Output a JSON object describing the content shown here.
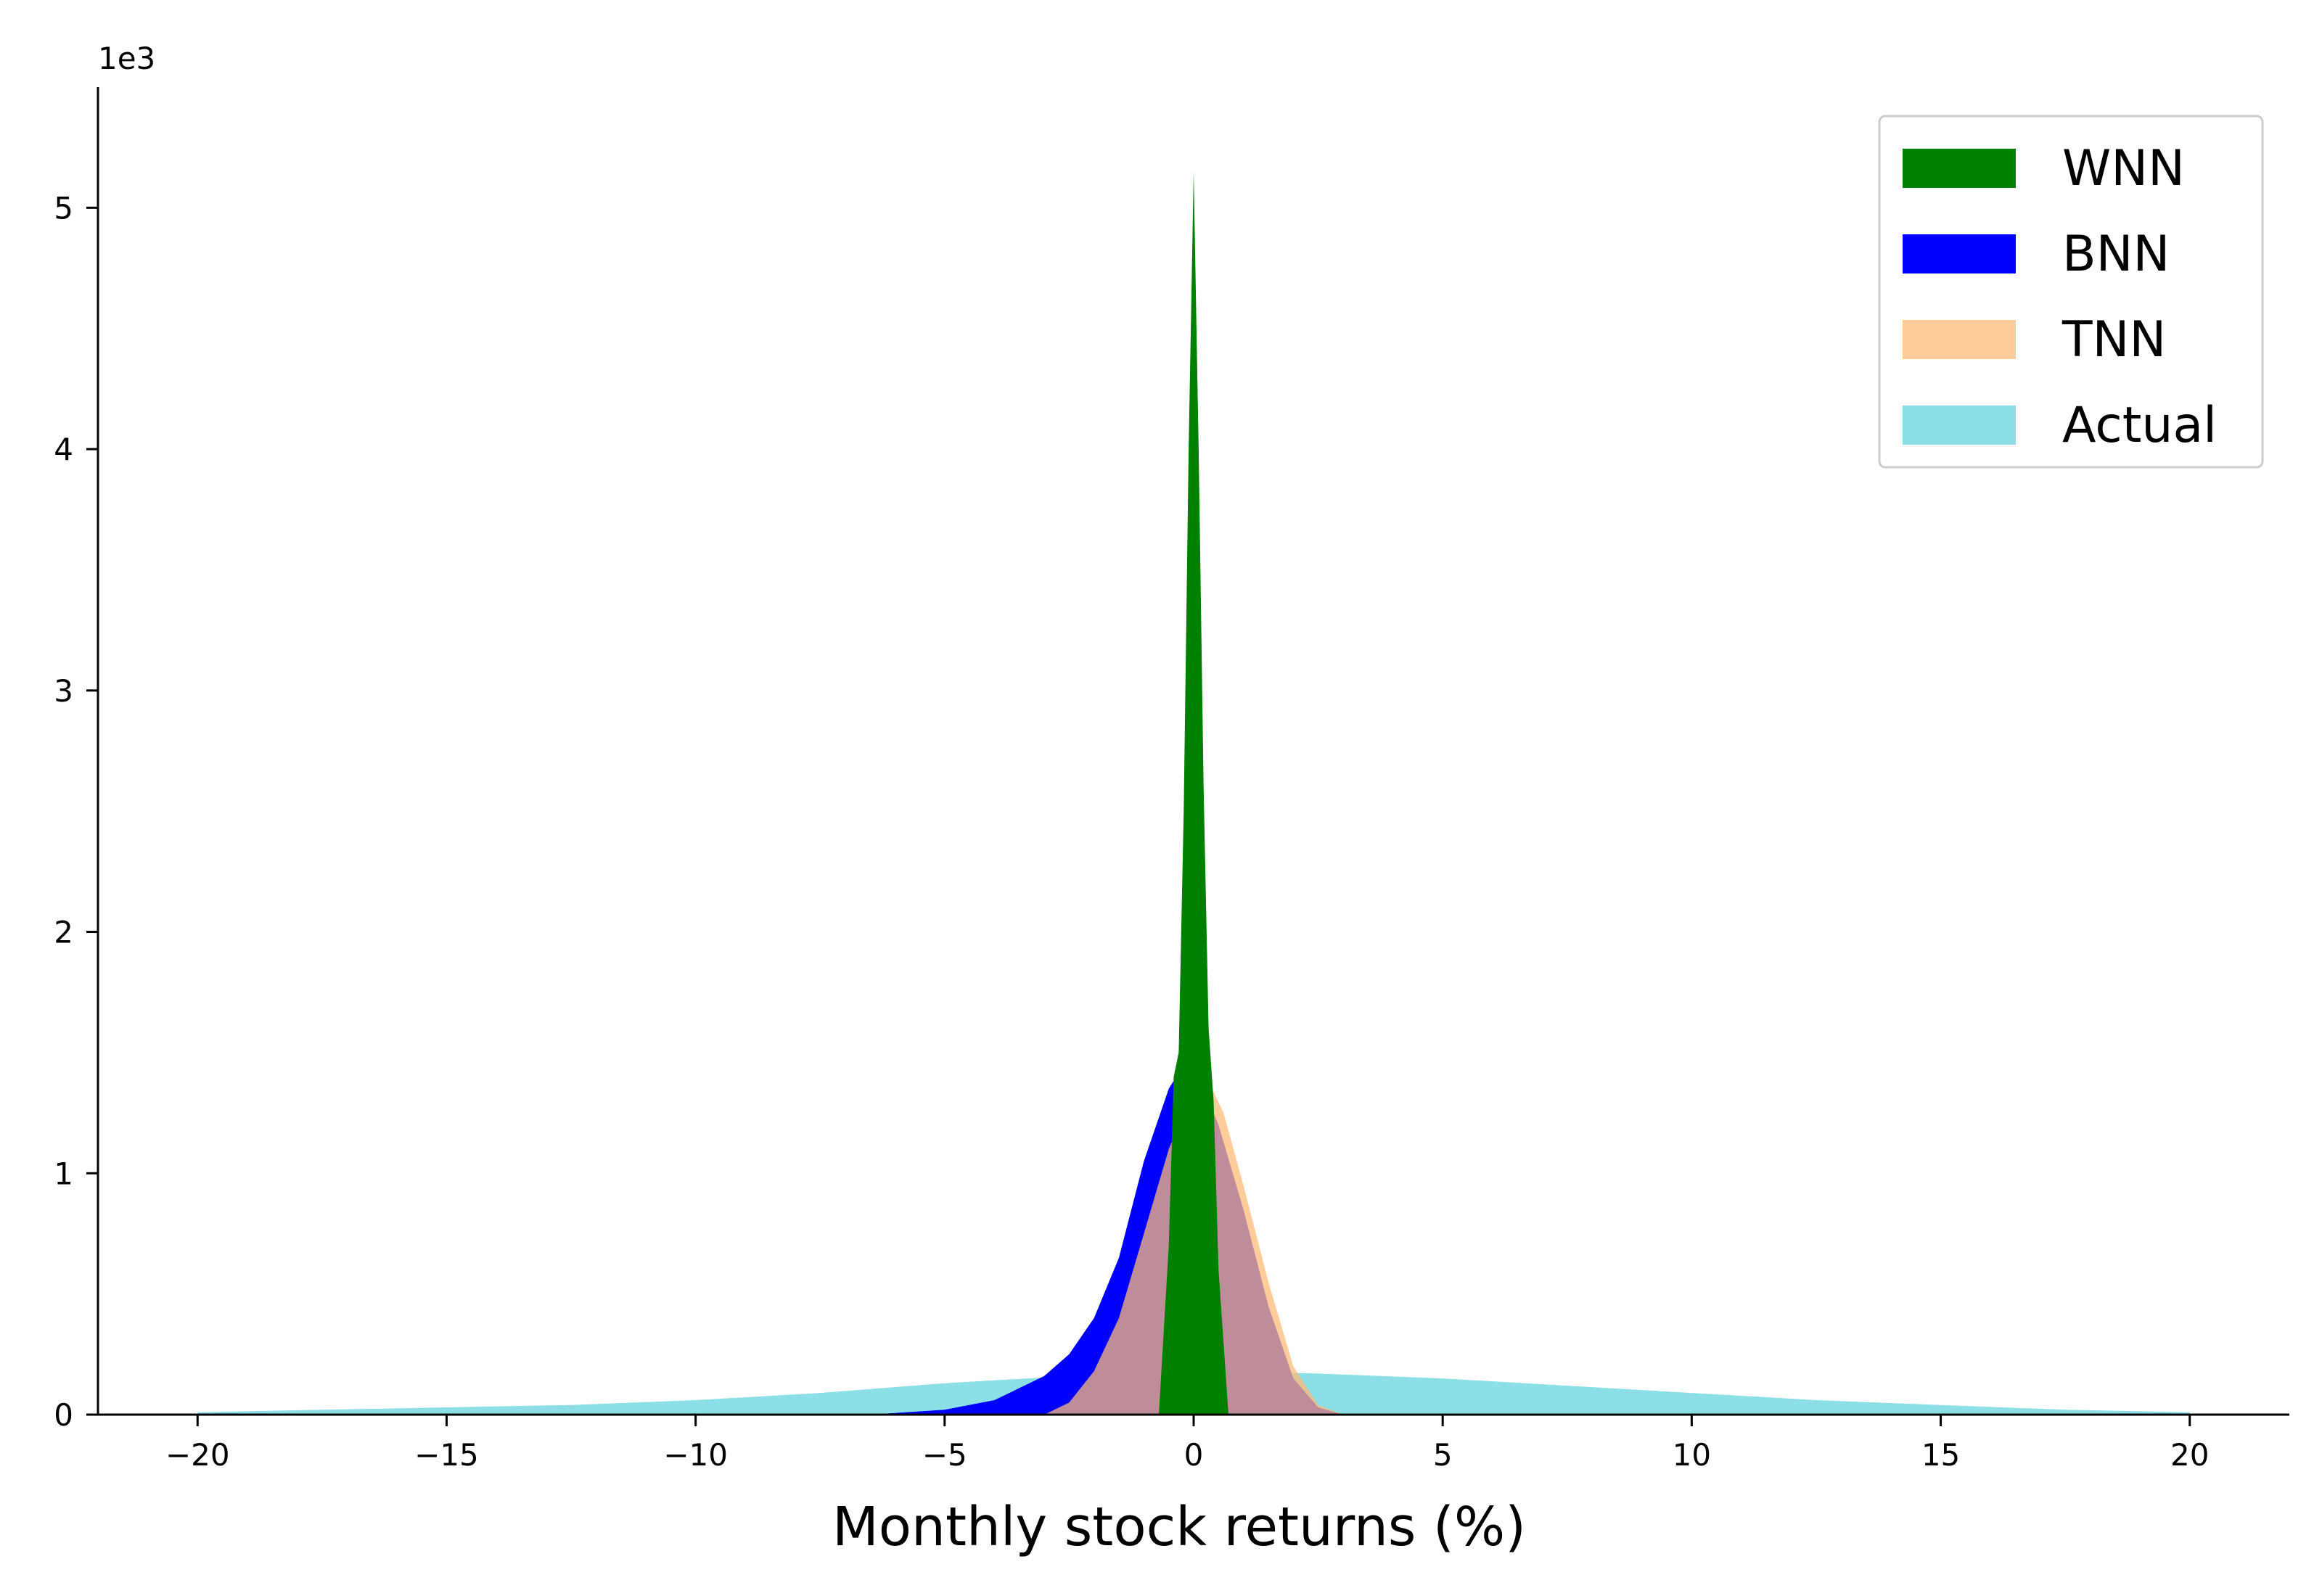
{
  "chart_data": {
    "type": "histogram",
    "title": "",
    "xlabel": "Monthly stock returns (%)",
    "ylabel": "",
    "y_scale_label": "1e3",
    "xlim": [
      -22,
      22
    ],
    "ylim": [
      0,
      5.5
    ],
    "x_ticks": [
      -20,
      -15,
      -10,
      -5,
      0,
      5,
      10,
      15,
      20
    ],
    "x_tick_labels": [
      "−20",
      "−15",
      "−10",
      "−5",
      "0",
      "5",
      "10",
      "15",
      "20"
    ],
    "y_ticks": [
      0,
      1,
      2,
      3,
      4,
      5
    ],
    "y_tick_labels": [
      "0",
      "1",
      "2",
      "3",
      "4",
      "5"
    ],
    "grid": false,
    "legend_position": "top-right",
    "series": [
      {
        "name": "WNN",
        "color": "#008000",
        "opacity": 1.0,
        "x": [
          -0.7,
          -0.5,
          -0.4,
          -0.3,
          -0.2,
          -0.1,
          0.0,
          0.1,
          0.2,
          0.3,
          0.4,
          0.5,
          0.7
        ],
        "values": [
          0.0,
          0.7,
          1.4,
          1.5,
          2.5,
          4.0,
          5.15,
          4.0,
          2.6,
          1.6,
          1.3,
          0.6,
          0.0
        ]
      },
      {
        "name": "BNN",
        "color": "#0000ff",
        "opacity": 1.0,
        "x": [
          -6.5,
          -5.0,
          -4.0,
          -3.0,
          -2.5,
          -2.0,
          -1.5,
          -1.0,
          -0.5,
          -0.2,
          0.0,
          0.2,
          0.5,
          1.0,
          1.5,
          2.0,
          2.5,
          3.0
        ],
        "values": [
          0.0,
          0.02,
          0.06,
          0.16,
          0.25,
          0.4,
          0.65,
          1.05,
          1.35,
          1.45,
          1.43,
          1.35,
          1.2,
          0.85,
          0.45,
          0.15,
          0.03,
          0.0
        ]
      },
      {
        "name": "TNN",
        "color": "#ffbb78",
        "opacity": 0.75,
        "x": [
          -3.0,
          -2.5,
          -2.0,
          -1.5,
          -1.0,
          -0.5,
          0.0,
          0.3,
          0.6,
          1.0,
          1.5,
          2.0,
          2.5,
          3.0
        ],
        "values": [
          0.0,
          0.05,
          0.18,
          0.4,
          0.75,
          1.1,
          1.35,
          1.38,
          1.25,
          0.95,
          0.55,
          0.2,
          0.04,
          0.0
        ]
      },
      {
        "name": "Actual",
        "color": "#5bd1dc",
        "opacity": 0.7,
        "x": [
          -20,
          -17.5,
          -15,
          -12.5,
          -10,
          -7.5,
          -5,
          -2.5,
          -1,
          0,
          1,
          2.5,
          5,
          7.5,
          10,
          12.5,
          15,
          17.5,
          20
        ],
        "values": [
          0.01,
          0.02,
          0.03,
          0.04,
          0.06,
          0.09,
          0.13,
          0.16,
          0.17,
          0.18,
          0.18,
          0.17,
          0.15,
          0.12,
          0.09,
          0.06,
          0.04,
          0.02,
          0.01
        ]
      }
    ]
  }
}
